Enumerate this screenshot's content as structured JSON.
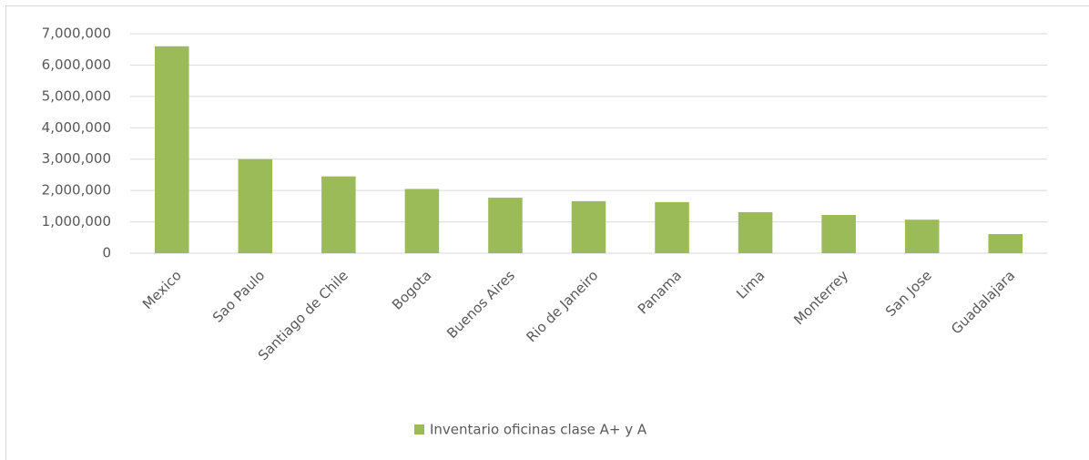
{
  "chart_data": {
    "type": "bar",
    "categories": [
      "Mexico",
      "Sao Paulo",
      "Santiago de Chile",
      "Bogota",
      "Buenos Aires",
      "Rio de Janeiro",
      "Panama",
      "Lima",
      "Monterrey",
      "San Jose",
      "Guadalajara"
    ],
    "series": [
      {
        "name": "Inventario oficinas clase A+ y A",
        "color": "#9bbb59",
        "values": [
          6600000,
          3000000,
          2450000,
          2050000,
          1770000,
          1660000,
          1630000,
          1310000,
          1220000,
          1070000,
          610000
        ]
      }
    ],
    "ylim": [
      0,
      7000000
    ],
    "yticks": [
      0,
      {
        "value": 1000000,
        "label": "1,000,000"
      },
      {
        "value": 2000000,
        "label": "2,000,000"
      },
      {
        "value": 3000000,
        "label": "3,000,000"
      },
      {
        "value": 4000000,
        "label": "4,000,000"
      },
      {
        "value": 5000000,
        "label": "5,000,000"
      },
      {
        "value": 6000000,
        "label": "6,000,000"
      },
      {
        "value": 7000000,
        "label": "7,000,000"
      }
    ],
    "grid": true,
    "legend": "bottom"
  }
}
